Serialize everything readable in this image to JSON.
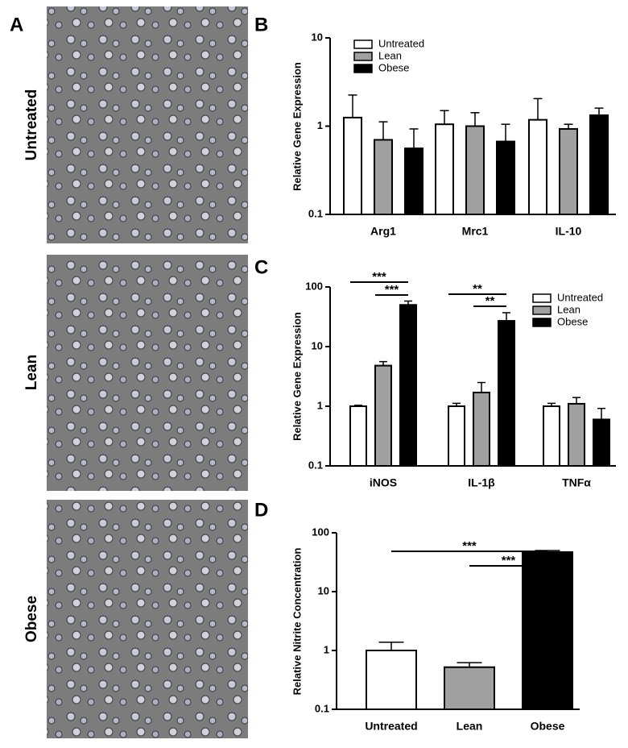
{
  "panels": [
    "A",
    "B",
    "C",
    "D"
  ],
  "image_labels": [
    "Untreated",
    "Lean",
    "Obese"
  ],
  "chart_data": [
    {
      "type": "bar",
      "ylabel": "Relative Gene Expression",
      "categories": [
        "Arg1",
        "Mrc1",
        "IL-10"
      ],
      "log_scale": true,
      "ylim": [
        0.1,
        10
      ],
      "yticks": [
        0.1,
        1,
        10
      ],
      "legend": "upper left",
      "series": [
        {
          "name": "Untreated",
          "color": "#ffffff",
          "values": [
            1.25,
            1.05,
            1.18
          ],
          "errors": [
            1.0,
            0.45,
            0.87
          ]
        },
        {
          "name": "Lean",
          "color": "#a0a0a0",
          "values": [
            0.7,
            1.0,
            0.93
          ],
          "errors": [
            0.42,
            0.42,
            0.12
          ]
        },
        {
          "name": "Obese",
          "color": "#000000",
          "values": [
            0.56,
            0.67,
            1.33
          ],
          "errors": [
            0.37,
            0.38,
            0.27
          ]
        }
      ]
    },
    {
      "type": "bar",
      "ylabel": "Relative Gene Expression",
      "categories": [
        "iNOS",
        "IL-1β",
        "TNFα"
      ],
      "log_scale": true,
      "ylim": [
        0.1,
        100
      ],
      "yticks": [
        0.1,
        1,
        10,
        100
      ],
      "legend": "upper right",
      "series": [
        {
          "name": "Untreated",
          "color": "#ffffff",
          "values": [
            1.0,
            1.0,
            1.0
          ],
          "errors": [
            0.04,
            0.12,
            0.12
          ]
        },
        {
          "name": "Lean",
          "color": "#a0a0a0",
          "values": [
            4.8,
            1.7,
            1.1
          ],
          "errors": [
            0.8,
            0.8,
            0.3
          ]
        },
        {
          "name": "Obese",
          "color": "#000000",
          "values": [
            50,
            27,
            0.6
          ],
          "errors": [
            8,
            10,
            0.32
          ]
        }
      ],
      "annotations": [
        "***",
        "***",
        "**",
        "**"
      ]
    },
    {
      "type": "bar",
      "ylabel": "Relative Nitrite Concentration",
      "categories": [
        "Untreated",
        "Lean",
        "Obese"
      ],
      "log_scale": true,
      "ylim": [
        0.1,
        100
      ],
      "yticks": [
        0.1,
        1,
        10,
        100
      ],
      "values": [
        1.0,
        0.52,
        47
      ],
      "errors": [
        0.38,
        0.1,
        3
      ],
      "colors": [
        "#ffffff",
        "#a0a0a0",
        "#000000"
      ],
      "annotations": [
        "***",
        "***"
      ]
    }
  ]
}
